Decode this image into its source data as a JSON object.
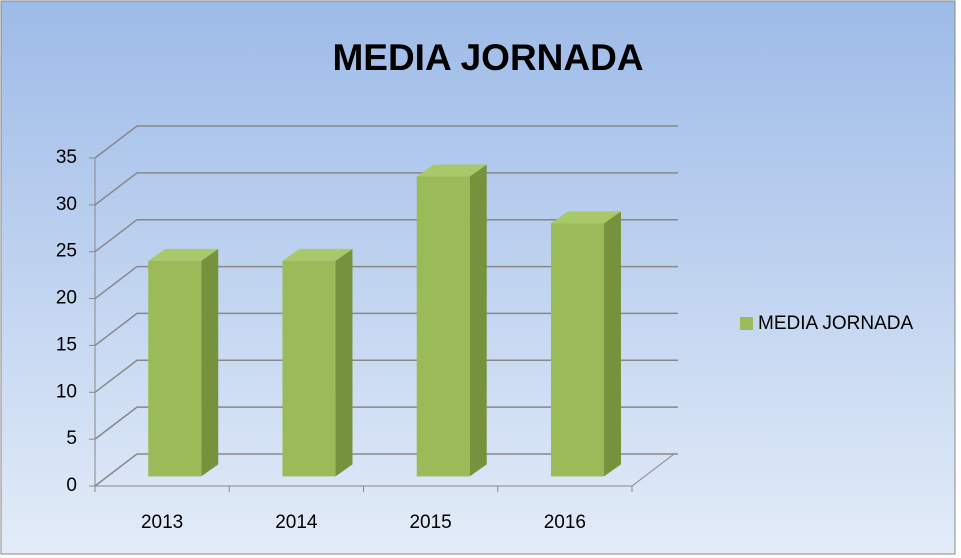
{
  "chart_data": {
    "type": "bar3d",
    "title": "MEDIA JORNADA",
    "categories": [
      "2013",
      "2014",
      "2015",
      "2016"
    ],
    "series": [
      {
        "name": "MEDIA JORNADA",
        "color": "#9bbb59",
        "values": [
          23,
          23,
          32,
          27
        ]
      }
    ],
    "ylim": [
      0,
      35
    ],
    "yticks": [
      0,
      5,
      10,
      15,
      20,
      25,
      30,
      35
    ],
    "grid": true,
    "legend": "right"
  }
}
